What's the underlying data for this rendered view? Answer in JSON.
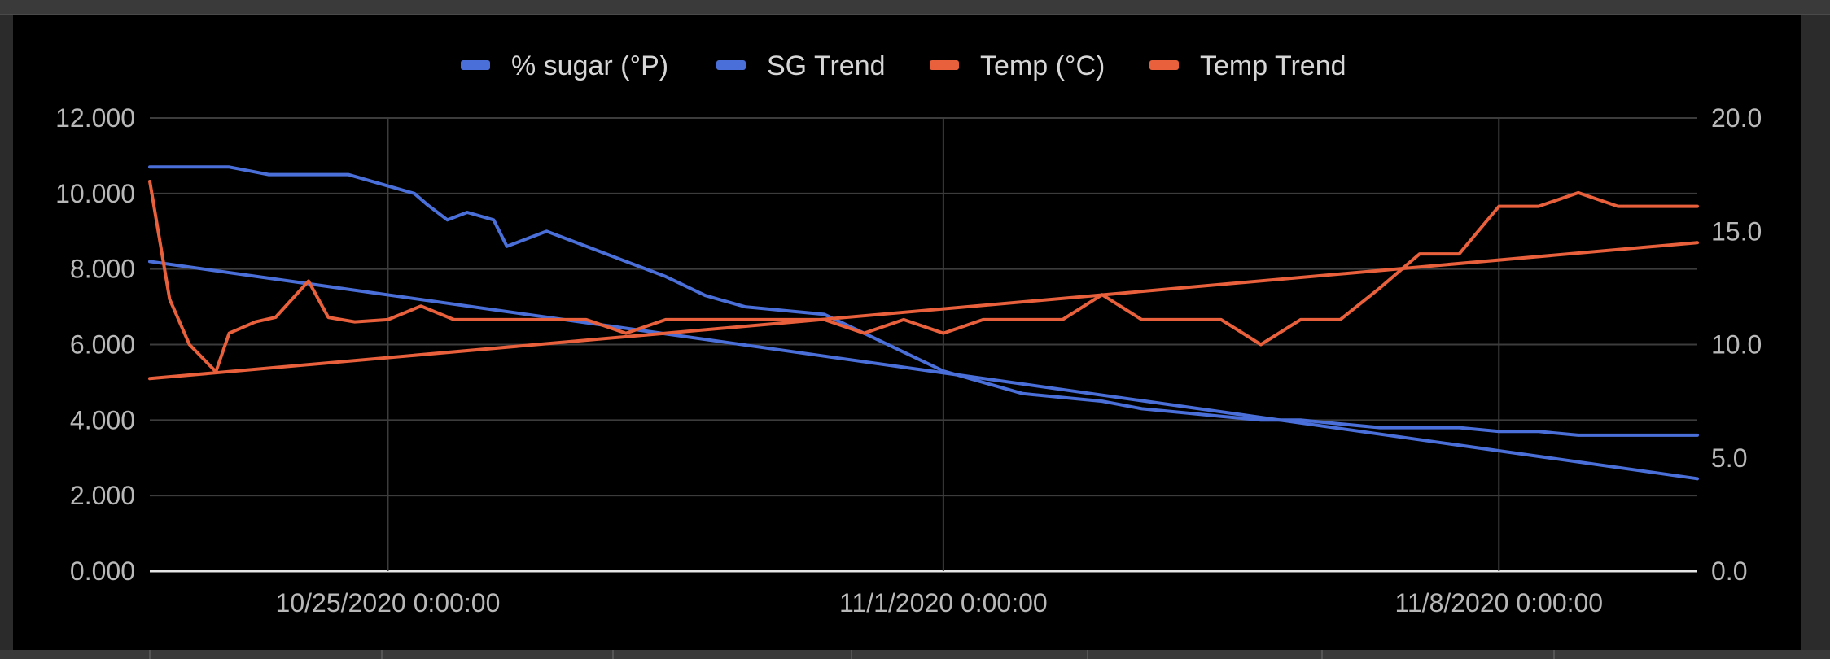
{
  "colors": {
    "sugar": "#4a6fd8",
    "temp": "#e8603c",
    "grid": "#3c3c3c",
    "baseline": "#e6e6e6"
  },
  "chart_data": {
    "type": "line",
    "title": "",
    "legend_position": "top",
    "grid": true,
    "x_axis": {
      "range": [
        "10/22/2020 0:00:00",
        "11/10/2020 12:00:00"
      ],
      "ticks": [
        {
          "label": "10/25/2020 0:00:00",
          "value": "10/25/2020 0:00:00"
        },
        {
          "label": "11/1/2020 0:00:00",
          "value": "11/1/2020 0:00:00"
        },
        {
          "label": "11/8/2020 0:00:00",
          "value": "11/8/2020 0:00:00"
        }
      ]
    },
    "y_left": {
      "range": [
        0,
        12
      ],
      "ticks": [
        "0.000",
        "2.000",
        "4.000",
        "6.000",
        "8.000",
        "10.000",
        "12.000"
      ]
    },
    "y_right": {
      "range": [
        0,
        20
      ],
      "ticks": [
        "0.0",
        "5.0",
        "10.0",
        "15.0",
        "20.0"
      ]
    },
    "series": [
      {
        "name": "% sugar (°P)",
        "axis": "left",
        "color": "#4a6fd8",
        "points": [
          [
            "10/22/2020 0:00:00",
            10.7
          ],
          [
            "10/23/2020 0:00:00",
            10.7
          ],
          [
            "10/23/2020 12:00:00",
            10.5
          ],
          [
            "10/24/2020 0:00:00",
            10.5
          ],
          [
            "10/24/2020 12:00:00",
            10.5
          ],
          [
            "10/25/2020 0:00:00",
            10.2
          ],
          [
            "10/25/2020 8:00:00",
            10.0
          ],
          [
            "10/25/2020 12:00:00",
            9.7
          ],
          [
            "10/25/2020 18:00:00",
            9.3
          ],
          [
            "10/26/2020 0:00:00",
            9.5
          ],
          [
            "10/26/2020 8:00:00",
            9.3
          ],
          [
            "10/26/2020 12:00:00",
            8.6
          ],
          [
            "10/27/2020 0:00:00",
            9.0
          ],
          [
            "10/27/2020 6:00:00",
            8.8
          ],
          [
            "10/27/2020 12:00:00",
            8.6
          ],
          [
            "10/28/2020 0:00:00",
            8.2
          ],
          [
            "10/28/2020 12:00:00",
            7.8
          ],
          [
            "10/29/2020 0:00:00",
            7.3
          ],
          [
            "10/29/2020 12:00:00",
            7.0
          ],
          [
            "10/30/2020 0:00:00",
            6.9
          ],
          [
            "10/30/2020 12:00:00",
            6.8
          ],
          [
            "10/31/2020 0:00:00",
            6.3
          ],
          [
            "10/31/2020 12:00:00",
            5.8
          ],
          [
            "11/1/2020 0:00:00",
            5.3
          ],
          [
            "11/1/2020 12:00:00",
            5.0
          ],
          [
            "11/2/2020 0:00:00",
            4.7
          ],
          [
            "11/2/2020 12:00:00",
            4.6
          ],
          [
            "11/3/2020 0:00:00",
            4.5
          ],
          [
            "11/3/2020 12:00:00",
            4.3
          ],
          [
            "11/4/2020 0:00:00",
            4.2
          ],
          [
            "11/4/2020 12:00:00",
            4.1
          ],
          [
            "11/5/2020 0:00:00",
            4.0
          ],
          [
            "11/5/2020 12:00:00",
            4.0
          ],
          [
            "11/6/2020 0:00:00",
            3.9
          ],
          [
            "11/6/2020 12:00:00",
            3.8
          ],
          [
            "11/7/2020 0:00:00",
            3.8
          ],
          [
            "11/7/2020 12:00:00",
            3.8
          ],
          [
            "11/8/2020 0:00:00",
            3.7
          ],
          [
            "11/8/2020 12:00:00",
            3.7
          ],
          [
            "11/9/2020 0:00:00",
            3.6
          ],
          [
            "11/9/2020 12:00:00",
            3.6
          ],
          [
            "11/10/2020 0:00:00",
            3.6
          ],
          [
            "11/10/2020 12:00:00",
            3.6
          ]
        ]
      },
      {
        "name": "SG Trend",
        "axis": "left",
        "color": "#4a6fd8",
        "points": [
          [
            "10/22/2020 0:00:00",
            8.2
          ],
          [
            "11/10/2020 12:00:00",
            2.45
          ]
        ]
      },
      {
        "name": "Temp (°C)",
        "axis": "right",
        "color": "#e8603c",
        "points": [
          [
            "10/22/2020 0:00:00",
            17.2
          ],
          [
            "10/22/2020 6:00:00",
            12.0
          ],
          [
            "10/22/2020 12:00:00",
            10.0
          ],
          [
            "10/22/2020 20:00:00",
            8.8
          ],
          [
            "10/23/2020 0:00:00",
            10.5
          ],
          [
            "10/23/2020 8:00:00",
            11.0
          ],
          [
            "10/23/2020 14:00:00",
            11.2
          ],
          [
            "10/24/2020 0:00:00",
            12.8
          ],
          [
            "10/24/2020 6:00:00",
            11.2
          ],
          [
            "10/24/2020 14:00:00",
            11.0
          ],
          [
            "10/25/2020 0:00:00",
            11.1
          ],
          [
            "10/25/2020 10:00:00",
            11.7
          ],
          [
            "10/25/2020 20:00:00",
            11.1
          ],
          [
            "10/27/2020 0:00:00",
            11.1
          ],
          [
            "10/27/2020 12:00:00",
            11.1
          ],
          [
            "10/28/2020 0:00:00",
            10.5
          ],
          [
            "10/28/2020 12:00:00",
            11.1
          ],
          [
            "10/29/2020 0:00:00",
            11.1
          ],
          [
            "10/30/2020 0:00:00",
            11.1
          ],
          [
            "10/30/2020 12:00:00",
            11.1
          ],
          [
            "10/31/2020 0:00:00",
            10.5
          ],
          [
            "10/31/2020 12:00:00",
            11.1
          ],
          [
            "11/1/2020 0:00:00",
            10.5
          ],
          [
            "11/1/2020 12:00:00",
            11.1
          ],
          [
            "11/2/2020 0:00:00",
            11.1
          ],
          [
            "11/2/2020 12:00:00",
            11.1
          ],
          [
            "11/3/2020 0:00:00",
            12.2
          ],
          [
            "11/3/2020 12:00:00",
            11.1
          ],
          [
            "11/4/2020 0:00:00",
            11.1
          ],
          [
            "11/4/2020 12:00:00",
            11.1
          ],
          [
            "11/5/2020 0:00:00",
            10.0
          ],
          [
            "11/5/2020 12:00:00",
            11.1
          ],
          [
            "11/6/2020 0:00:00",
            11.1
          ],
          [
            "11/6/2020 12:00:00",
            12.5
          ],
          [
            "11/7/2020 0:00:00",
            14.0
          ],
          [
            "11/7/2020 12:00:00",
            14.0
          ],
          [
            "11/8/2020 0:00:00",
            16.1
          ],
          [
            "11/8/2020 12:00:00",
            16.1
          ],
          [
            "11/9/2020 0:00:00",
            16.7
          ],
          [
            "11/9/2020 12:00:00",
            16.1
          ],
          [
            "11/10/2020 0:00:00",
            16.1
          ],
          [
            "11/10/2020 12:00:00",
            16.1
          ]
        ]
      },
      {
        "name": "Temp Trend",
        "axis": "right",
        "color": "#e8603c",
        "points": [
          [
            "10/22/2020 0:00:00",
            8.5
          ],
          [
            "11/10/2020 12:00:00",
            14.5
          ]
        ]
      }
    ]
  }
}
